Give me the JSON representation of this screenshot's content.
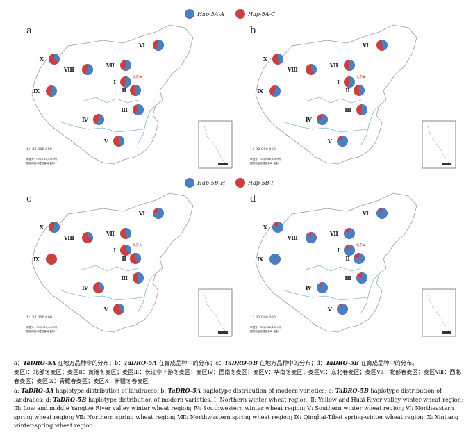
{
  "legends": [
    {
      "id": "top",
      "items": [
        {
          "label": "Hap-5A-A",
          "color": "#4a7fc1"
        },
        {
          "label": "Hap-5A-C",
          "color": "#c9403f"
        }
      ]
    },
    {
      "id": "bottom",
      "items": [
        {
          "label": "Hap-5B-H",
          "color": "#4a7fc1"
        },
        {
          "label": "Hap-5B-I",
          "color": "#c9403f"
        }
      ]
    }
  ],
  "region_labels": [
    "Ⅰ",
    "Ⅱ",
    "Ⅲ",
    "Ⅳ",
    "Ⅴ",
    "Ⅵ",
    "Ⅶ",
    "Ⅷ",
    "Ⅸ",
    "Ⅹ"
  ],
  "capital_label": "北京★",
  "scale_text": "1：32 000 000",
  "map_note": [
    "审图号：GS(2016)1609号",
    "国家测绘地理信息局 监制"
  ],
  "panels": [
    {
      "letter": "a",
      "shares": [
        0.55,
        0.48,
        0.62,
        0.6,
        0.45,
        0.6,
        0.55,
        0.58,
        0.55,
        0.35
      ]
    },
    {
      "letter": "b",
      "shares": [
        0.55,
        0.5,
        0.52,
        0.75,
        0.8,
        0.45,
        0.5,
        0.4,
        0.6,
        0.45
      ]
    },
    {
      "letter": "c",
      "shares": [
        0.35,
        0.4,
        0.5,
        0.35,
        0.35,
        0.75,
        0.45,
        0.3,
        0.0,
        0.6
      ]
    },
    {
      "letter": "d",
      "shares": [
        0.85,
        0.8,
        0.8,
        0.88,
        0.9,
        0.9,
        0.85,
        0.9,
        1.0,
        0.85
      ]
    }
  ],
  "caption_cn": {
    "a_pre": "a：",
    "a_gene": "TaDRO-5A",
    "a_txt": " 在地方品种中的分布；",
    "b_pre": "b：",
    "b_gene": "TaDRO-5A",
    "b_txt": " 在育成品种中的分布；",
    "c_pre": "c：",
    "c_gene": "TaDRO-5B",
    "c_txt": " 在地方品种中的分布；",
    "d_pre": "d：",
    "d_gene": "TaDRO-5B",
    "d_txt": " 在育成品种中的分布。",
    "regions": "麦区Ⅰ：北部冬麦区；麦区Ⅱ：黄淮冬麦区；麦区Ⅲ：长江中下游冬麦区；麦区Ⅳ：西南冬麦区；麦区Ⅴ：华南冬麦区；麦区Ⅵ：东北春麦区；麦区Ⅶ：北部春麦区；麦区Ⅷ：西北春麦区；麦区Ⅸ：青藏春麦区；麦区Ⅹ：新疆冬春麦区"
  },
  "caption_en": {
    "a_pre": "a: ",
    "a_gene": "TaDRO-5A",
    "a_txt": " haplotype distribution of landraces; b: ",
    "b_gene": "TaDRO-5A",
    "b_txt": " haplotype distribution of modern varieties; c: ",
    "c_gene": "TaDRO-5B",
    "c_txt": " haplotype distribution of landraces; d: ",
    "d_gene": "TaDRO-5B",
    "d_txt": " haplotype distribution of modern varieties. Ⅰ: Northern winter wheat region; Ⅱ: Yellow and Huai River valley winter wheat region; Ⅲ: Low and middle Yangtze River valley winter wheat region; Ⅳ: Southwestern winter wheat region; Ⅴ: Southern winter wheat region; Ⅵ: Northeastern spring wheat region; Ⅶ: Northern spring wheat region; Ⅷ: Northwestern spring wheat region; Ⅸ: Qinghai-Tibet spring-winter wheat region; Ⅹ: Xinjiang winter-spring wheat region"
  }
}
